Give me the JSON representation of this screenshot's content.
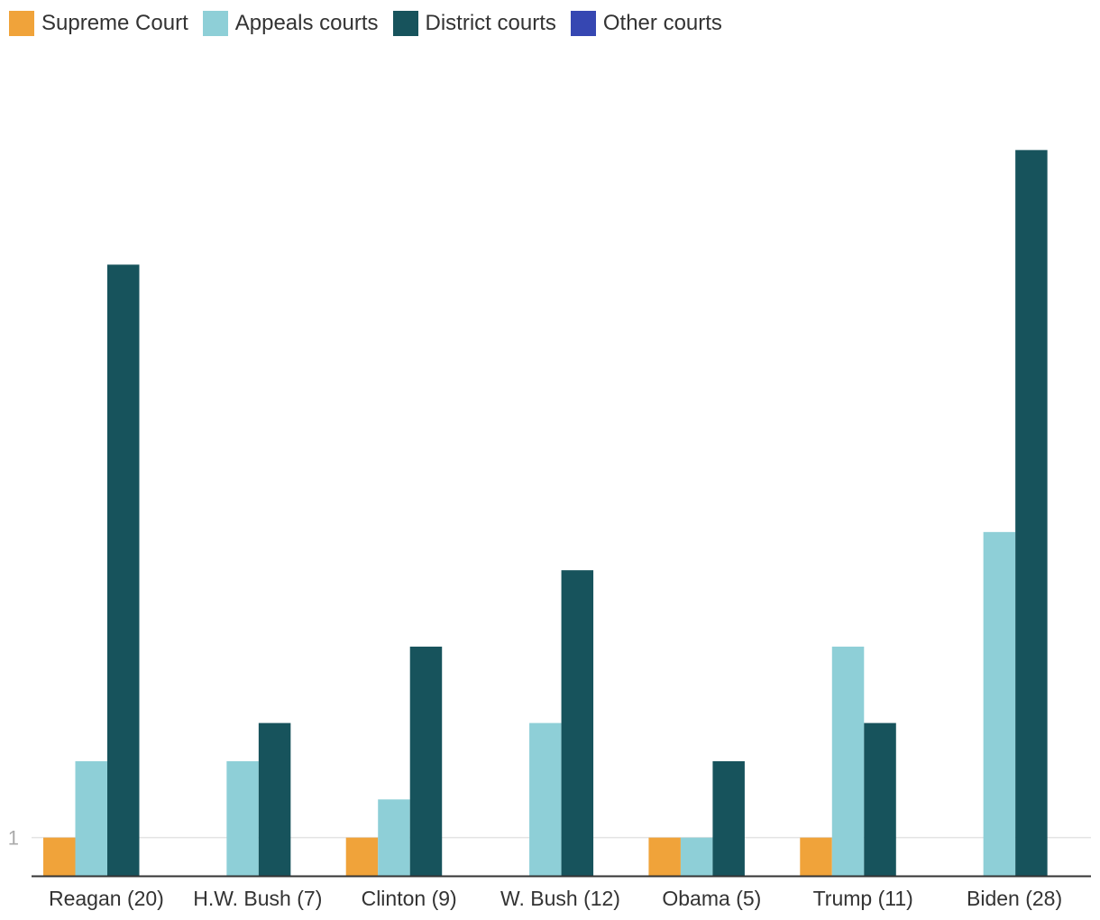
{
  "chart_data": {
    "type": "bar",
    "categories": [
      "Reagan (20)",
      "H.W. Bush (7)",
      "Clinton (9)",
      "W. Bush (12)",
      "Obama (5)",
      "Trump (11)",
      "Biden (28)"
    ],
    "series": [
      {
        "name": "Supreme Court",
        "color": "#f0a33a",
        "values": [
          1,
          0,
          1,
          0,
          1,
          1,
          0
        ]
      },
      {
        "name": "Appeals courts",
        "color": "#8ecfd7",
        "values": [
          3,
          3,
          2,
          4,
          1,
          6,
          9
        ]
      },
      {
        "name": "District courts",
        "color": "#17535c",
        "values": [
          16,
          4,
          6,
          8,
          3,
          4,
          19
        ]
      },
      {
        "name": "Other courts",
        "color": "#3647b2",
        "values": [
          0,
          0,
          0,
          0,
          0,
          0,
          0
        ]
      }
    ],
    "y_tick_labels": [
      "1"
    ],
    "ylim": [
      0,
      20
    ],
    "grid": true,
    "legend_position": "top-left"
  }
}
